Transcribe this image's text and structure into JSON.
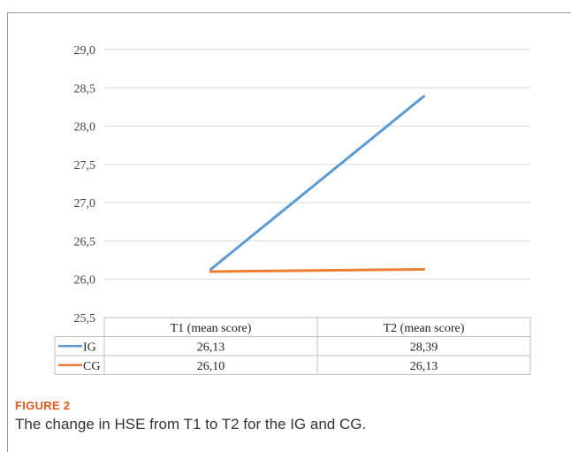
{
  "figure_label": "FIGURE 2",
  "caption": "The change in HSE from T1 to T2 for the IG and CG.",
  "colors": {
    "IG": "#5b9bd5",
    "CG": "#ed7d31",
    "grid": "#d9d9d9",
    "table_border": "#bfbfbf"
  },
  "chart_data": {
    "type": "line",
    "categories": [
      "T1 (mean score)",
      "T2 (mean score)"
    ],
    "series": [
      {
        "name": "IG",
        "values": [
          26.13,
          28.39
        ],
        "labels": [
          "26,13",
          "28,39"
        ]
      },
      {
        "name": "CG",
        "values": [
          26.1,
          26.13
        ],
        "labels": [
          "26,10",
          "26,13"
        ]
      }
    ],
    "ylim": [
      25.5,
      29.0
    ],
    "yticks": [
      "25,5",
      "26,0",
      "26,5",
      "27,0",
      "27,5",
      "28,0",
      "28,5",
      "29,0"
    ],
    "grid": true,
    "legend": "data-table"
  }
}
